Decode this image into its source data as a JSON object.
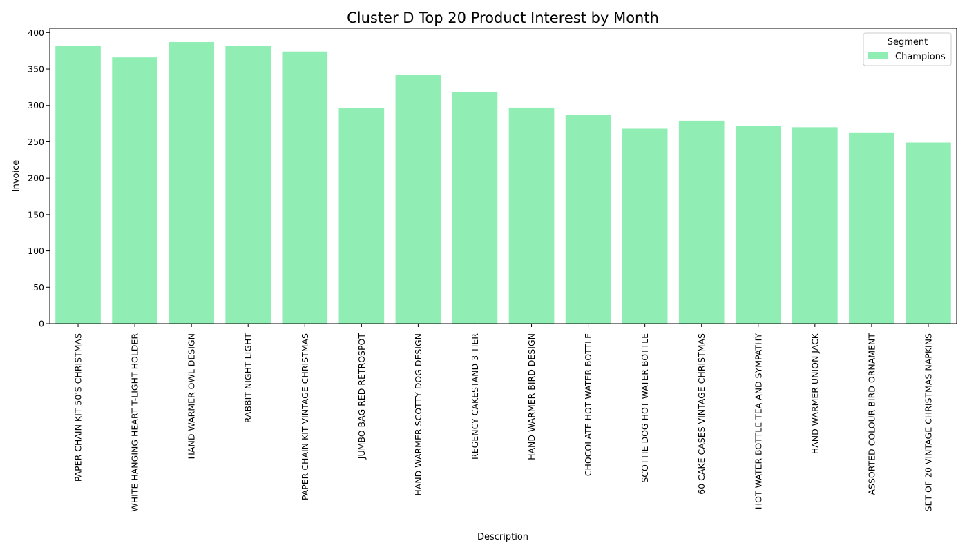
{
  "chart_data": {
    "type": "bar",
    "title": "Cluster D Top 20 Product Interest by Month",
    "xlabel": "Description",
    "ylabel": "Invoice",
    "ylim": [
      0,
      406
    ],
    "yticks": [
      0,
      50,
      100,
      150,
      200,
      250,
      300,
      350,
      400
    ],
    "grid": false,
    "legend": {
      "title": "Segment",
      "position": "top-right",
      "entries": [
        "Champions"
      ]
    },
    "categories": [
      "PAPER CHAIN KIT 50'S CHRISTMAS",
      "WHITE HANGING HEART T-LIGHT HOLDER",
      "HAND WARMER OWL DESIGN",
      "RABBIT NIGHT LIGHT",
      "PAPER CHAIN KIT VINTAGE CHRISTMAS",
      "JUMBO BAG RED RETROSPOT",
      "HAND WARMER SCOTTY DOG DESIGN",
      "REGENCY CAKESTAND 3 TIER",
      "HAND WARMER BIRD DESIGN",
      "CHOCOLATE HOT WATER BOTTLE",
      "SCOTTIE DOG HOT WATER BOTTLE",
      "60 CAKE CASES VINTAGE CHRISTMAS",
      "HOT WATER BOTTLE TEA AND SYMPATHY",
      "HAND WARMER UNION JACK",
      "ASSORTED COLOUR BIRD ORNAMENT",
      "SET OF 20 VINTAGE CHRISTMAS NAPKINS"
    ],
    "series": [
      {
        "name": "Champions",
        "color": "#90eeb4",
        "values": [
          382,
          366,
          387,
          382,
          374,
          296,
          342,
          318,
          297,
          287,
          268,
          279,
          272,
          270,
          262,
          249
        ]
      }
    ]
  }
}
